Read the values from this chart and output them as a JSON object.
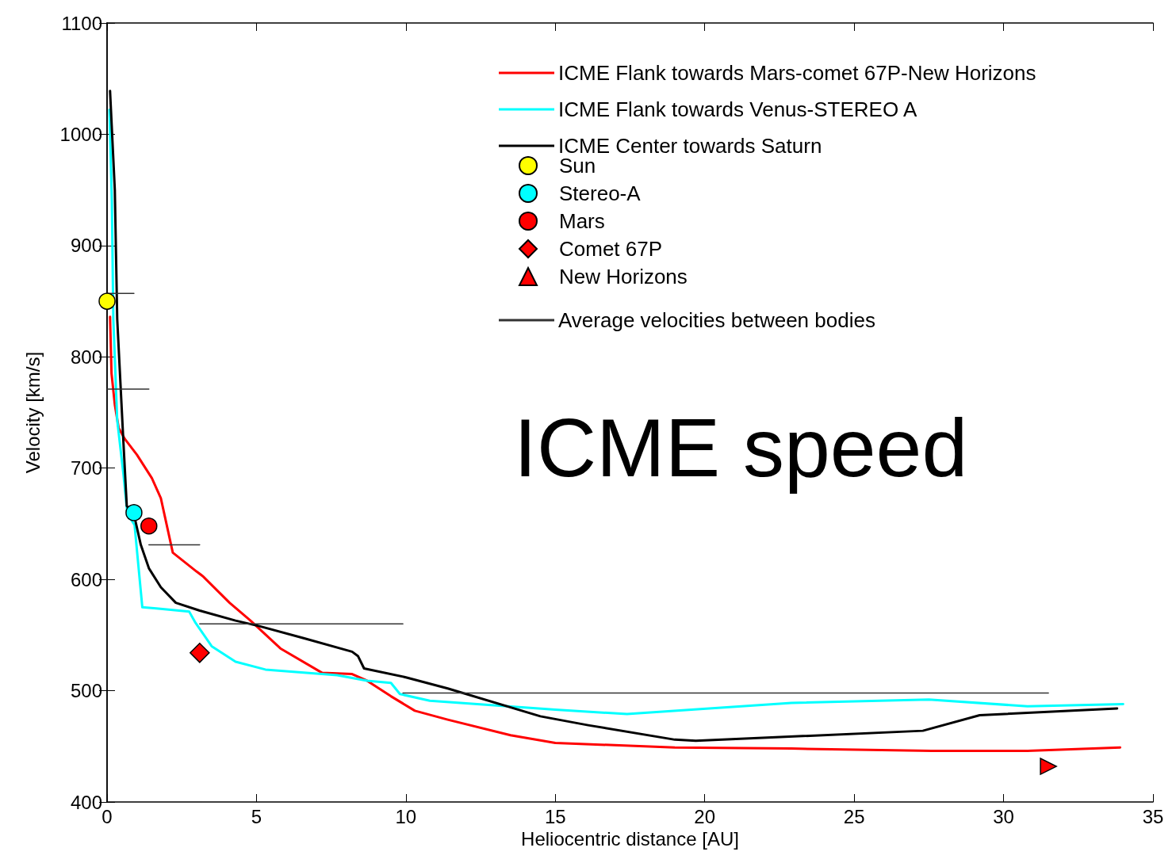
{
  "chart_data": {
    "type": "line",
    "xlabel": "Heliocentric distance [AU]",
    "ylabel": "Velocity [km/s]",
    "xlim": [
      0,
      35
    ],
    "xticks": [
      0,
      5,
      10,
      15,
      20,
      25,
      30,
      35
    ],
    "ylim": [
      400,
      1100
    ],
    "yticks": [
      400,
      500,
      600,
      700,
      800,
      900,
      1000,
      1100
    ],
    "grid": false,
    "legend": "top right",
    "annotations": [
      "ICME speed"
    ],
    "series": [
      {
        "name": "ICME Flank towards Mars-comet 67P-New Horizons",
        "color": "#ff0000",
        "x": [
          0.1,
          0.15,
          0.26,
          0.39,
          0.6,
          1,
          1.5,
          1.8,
          2.2,
          3,
          3.2,
          4.1,
          4.8,
          5.8,
          7.2,
          8.2,
          8.7,
          9.5,
          10.3,
          11.4,
          13.5,
          15,
          19,
          22.9,
          27.6,
          30.8,
          33.9
        ],
        "values": [
          836,
          785,
          757,
          736,
          726,
          712,
          691,
          673,
          624,
          607,
          603,
          579,
          563,
          538,
          516,
          515,
          509,
          495,
          482,
          474,
          460,
          453,
          449,
          448,
          446,
          446,
          449
        ]
      },
      {
        "name": "ICME Flank towards Venus-STEREO A",
        "color": "#00ffff",
        "x": [
          0.08,
          0.16,
          0.21,
          0.34,
          0.55,
          0.68,
          0.92,
          1.18,
          1.65,
          2.75,
          2.96,
          3.5,
          4.3,
          5.3,
          7.7,
          8.7,
          9.5,
          9.8,
          10.8,
          15,
          17.4,
          22.9,
          27.5,
          30.8,
          34
        ],
        "values": [
          1022,
          940,
          834,
          743,
          694,
          659,
          649,
          575,
          574,
          571,
          561,
          540,
          526,
          519,
          514,
          509,
          507,
          497,
          491,
          483,
          479,
          489,
          492,
          486,
          488
        ]
      },
      {
        "name": "ICME Center towards Saturn",
        "color": "#000000",
        "x": [
          0.1,
          0.26,
          0.34,
          0.55,
          0.66,
          0.92,
          1.13,
          1.4,
          1.8,
          2.3,
          3.1,
          4.3,
          5.1,
          6.6,
          8.2,
          8.4,
          8.6,
          10,
          11.4,
          14.5,
          16.1,
          19,
          19.7,
          27.3,
          29.2,
          33.8
        ],
        "values": [
          1039,
          950,
          834,
          722,
          666,
          656,
          631,
          610,
          593,
          579,
          572,
          563,
          558,
          547,
          535,
          531,
          520,
          512,
          502,
          477,
          469,
          456,
          455,
          464,
          478,
          484
        ]
      },
      {
        "name": "Sun",
        "type": "scatter",
        "marker": "circle",
        "color": "#ffff00",
        "x": [
          0
        ],
        "values": [
          850
        ]
      },
      {
        "name": "Stereo-A",
        "type": "scatter",
        "marker": "circle",
        "color": "#00ffff",
        "x": [
          0.9
        ],
        "values": [
          660
        ]
      },
      {
        "name": "Mars",
        "type": "scatter",
        "marker": "circle",
        "color": "#ff0000",
        "x": [
          1.4
        ],
        "values": [
          648
        ]
      },
      {
        "name": "Comet 67P",
        "type": "scatter",
        "marker": "diamond",
        "color": "#ff0000",
        "x": [
          3.1
        ],
        "values": [
          534
        ]
      },
      {
        "name": "New Horizons",
        "type": "scatter",
        "marker": "triangle",
        "color": "#ff0000",
        "x": [
          31.5
        ],
        "values": [
          432
        ]
      },
      {
        "name": "Average velocities between bodies",
        "color": "#333333",
        "x": [
          0,
          0.9,
          null,
          0,
          1.4,
          null,
          1.4,
          3.1,
          null,
          3.1,
          9.9,
          null,
          9.9,
          31.5
        ],
        "values": [
          857,
          857,
          null,
          771,
          771,
          null,
          631,
          631,
          null,
          560,
          560,
          null,
          498,
          498
        ]
      }
    ]
  }
}
